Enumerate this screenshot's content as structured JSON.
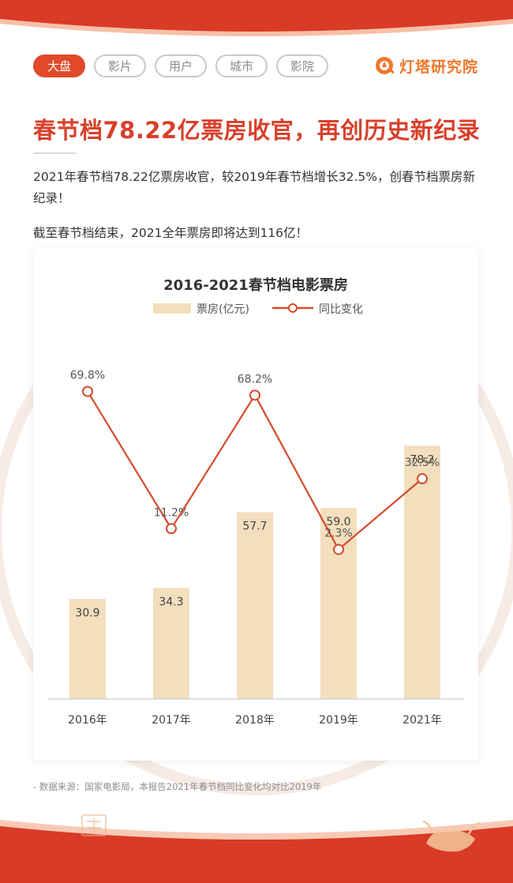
{
  "tabs": [
    {
      "label": "大盘",
      "active": true
    },
    {
      "label": "影片",
      "active": false
    },
    {
      "label": "用户",
      "active": false
    },
    {
      "label": "城市",
      "active": false
    },
    {
      "label": "影院",
      "active": false
    }
  ],
  "brand": {
    "name": "灯塔研究院",
    "icon": "lighthouse-logo-icon"
  },
  "headline": "春节档78.22亿票房收官，再创历史新纪录",
  "paragraphs": [
    "2021年春节档78.22亿票房收官，较2019年春节档增长32.5%，创春节档票房新纪录！",
    "截至春节档结束，2021全年票房即将达到116亿！"
  ],
  "chart_data": {
    "type": "bar",
    "title": "2016-2021春节档电影票房",
    "categories": [
      "2016年",
      "2017年",
      "2018年",
      "2019年",
      "2021年"
    ],
    "series": [
      {
        "name": "票房(亿元)",
        "type": "bar",
        "values": [
          30.9,
          34.3,
          57.7,
          59.0,
          78.2
        ],
        "labels": [
          "30.9",
          "34.3",
          "57.7",
          "59.0",
          "78.2"
        ]
      },
      {
        "name": "同比变化",
        "type": "line",
        "values": [
          69.8,
          11.2,
          68.2,
          2.3,
          32.5
        ],
        "labels": [
          "69.8%",
          "11.2%",
          "68.2%",
          "2.3%",
          "32.5%"
        ]
      }
    ],
    "legend_position": "top",
    "grid": false
  },
  "footer": {
    "source": "- 数据来源：国家电影局，本报告2021年春节档同比变化均对比2019年"
  },
  "colors": {
    "accent": "#d8402a",
    "tab_active": "#e04a2a",
    "bar": "#f3dfbd",
    "line": "#d64a2c",
    "brand": "#f0762b"
  }
}
